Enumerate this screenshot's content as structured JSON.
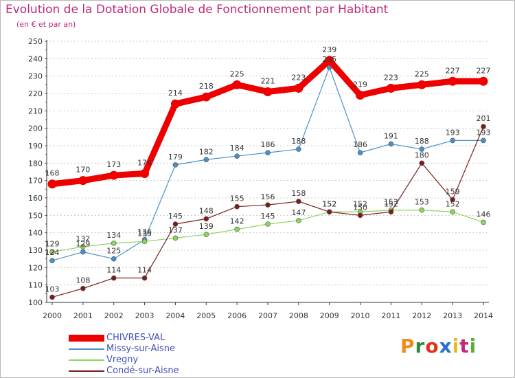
{
  "header": {
    "title": "Evolution de la Dotation Globale de Fonctionnement par Habitant",
    "subtitle": "(en € et par an)"
  },
  "brand": {
    "text": "Proxiti",
    "colors": [
      "#f08a1c",
      "#2a8a3e",
      "#e0301e",
      "#2a6fc8",
      "#f0b820",
      "#c02a78",
      "#5ab030"
    ]
  },
  "colors": {
    "title": "#c02a78",
    "legend_text": "#3f4fb8",
    "axis": "#333333",
    "label": "#333333"
  },
  "chart_data": {
    "type": "line",
    "title": "Evolution de la Dotation Globale de Fonctionnement par Habitant",
    "subtitle": "(en € et par an)",
    "xlabel": "",
    "ylabel": "",
    "x": [
      "2000",
      "2001",
      "2002",
      "2003",
      "2004",
      "2005",
      "2006",
      "2007",
      "2008",
      "2009",
      "2010",
      "2011",
      "2012",
      "2013",
      "2014"
    ],
    "yticks": [
      "100",
      "110",
      "120",
      "130",
      "140",
      "150",
      "160",
      "170",
      "180",
      "190",
      "200",
      "210",
      "220",
      "230",
      "240",
      "250"
    ],
    "ylim": [
      100,
      250
    ],
    "grid": true,
    "legend_position": "bottom-left",
    "series": [
      {
        "name": "CHIVRES-VAL",
        "color": "#ee0000",
        "values": [
          168,
          170,
          173,
          174,
          214,
          218,
          225,
          221,
          223,
          239,
          219,
          223,
          225,
          227,
          227
        ],
        "labels": [
          "168",
          "170",
          "173",
          "174",
          "214",
          "218",
          "225",
          "221",
          "223",
          "239",
          "219",
          "223",
          "225",
          "227",
          "227"
        ]
      },
      {
        "name": "Missy-sur-Aisne",
        "color": "#4a90c8",
        "values": [
          124,
          129,
          125,
          136,
          179,
          182,
          184,
          186,
          188,
          235,
          186,
          191,
          188,
          193,
          193
        ],
        "labels": [
          "124",
          "129",
          "125",
          "136",
          "179",
          "182",
          "184",
          "186",
          "188",
          "235",
          "186",
          "191",
          "188",
          "193",
          "193"
        ]
      },
      {
        "name": "Vregny",
        "color": "#8fd45a",
        "values": [
          129,
          132,
          134,
          135,
          137,
          139,
          142,
          145,
          147,
          152,
          152,
          153,
          153,
          152,
          146
        ],
        "labels": [
          "129",
          "132",
          "134",
          "135",
          "137",
          "139",
          "142",
          "145",
          "147",
          "152",
          "152",
          "153",
          "153",
          "152",
          "146"
        ]
      },
      {
        "name": "Condé-sur-Aisne",
        "color": "#7a1c1c",
        "values": [
          103,
          108,
          114,
          114,
          145,
          148,
          155,
          156,
          158,
          152,
          150,
          152,
          180,
          159,
          201
        ],
        "labels": [
          "103",
          "108",
          "114",
          "114",
          "145",
          "148",
          "155",
          "156",
          "158",
          "152",
          "150",
          "152",
          "180",
          "159",
          "201"
        ]
      }
    ]
  }
}
